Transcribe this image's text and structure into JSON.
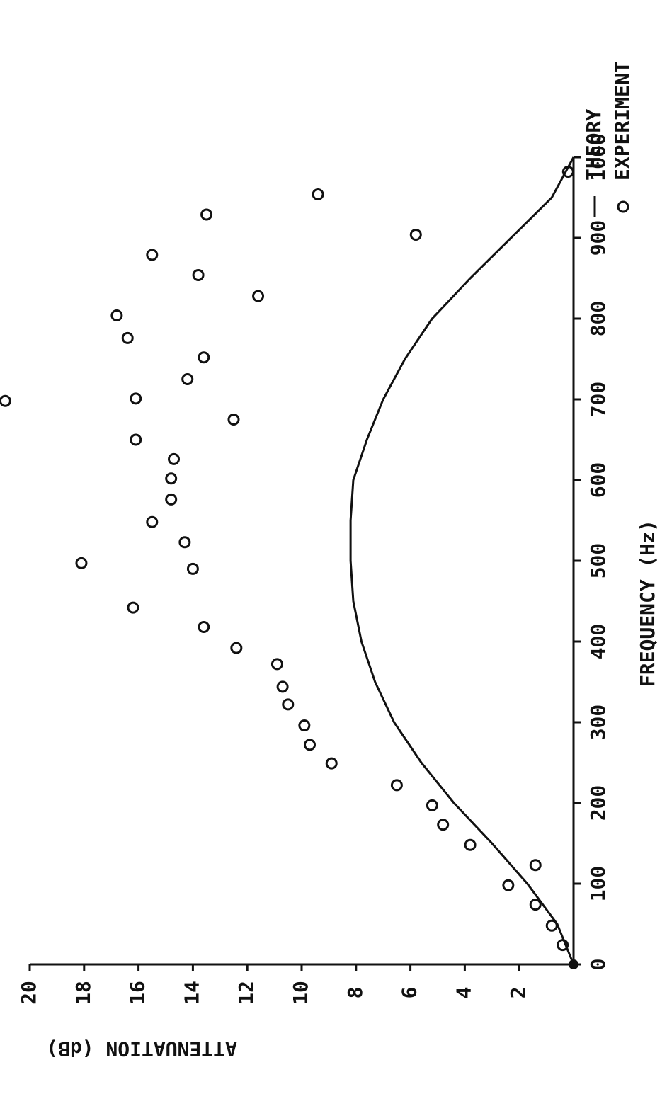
{
  "chart_data": {
    "type": "scatter",
    "x_label": "FREQUENCY (Hz)",
    "y_label": "ATTENUATION (dB)",
    "xlim": [
      0,
      1000
    ],
    "ylim": [
      0,
      20
    ],
    "xticks": [
      0,
      100,
      200,
      300,
      400,
      500,
      600,
      700,
      800,
      900,
      1000
    ],
    "yticks": [
      2,
      4,
      6,
      8,
      10,
      12,
      14,
      16,
      18,
      20
    ],
    "series": [
      {
        "name": "EXPERIMENT",
        "color": "#111111",
        "type": "scatter",
        "x": [
          24,
          48,
          74,
          98,
          123,
          148,
          173,
          197,
          222,
          249,
          272,
          296,
          322,
          344,
          372,
          392,
          418,
          442,
          490,
          497,
          523,
          548,
          576,
          602,
          626,
          650,
          675,
          698,
          701,
          725,
          752,
          776,
          804,
          828,
          854,
          879,
          904,
          929,
          954,
          982
        ],
        "values": [
          0.4,
          0.8,
          1.4,
          2.4,
          1.4,
          3.8,
          4.8,
          5.2,
          6.5,
          8.9,
          9.7,
          9.9,
          10.5,
          10.7,
          10.9,
          12.4,
          13.6,
          16.2,
          14.0,
          18.1,
          14.3,
          15.5,
          14.8,
          14.8,
          14.7,
          16.1,
          12.5,
          20.9,
          16.1,
          14.2,
          13.6,
          16.4,
          16.8,
          11.6,
          13.8,
          15.5,
          5.8,
          13.5,
          9.4,
          0.2
        ]
      },
      {
        "name": "THEORY",
        "color": "#111111",
        "type": "line",
        "x": [
          0,
          50,
          100,
          150,
          200,
          250,
          300,
          350,
          400,
          450,
          500,
          550,
          600,
          650,
          700,
          750,
          800,
          850,
          900,
          950,
          1000
        ],
        "values": [
          0,
          0.6,
          1.7,
          3.0,
          4.4,
          5.6,
          6.6,
          7.3,
          7.8,
          8.1,
          8.2,
          8.2,
          8.1,
          7.6,
          7.0,
          6.2,
          5.2,
          3.8,
          2.3,
          0.8,
          0
        ]
      }
    ]
  }
}
